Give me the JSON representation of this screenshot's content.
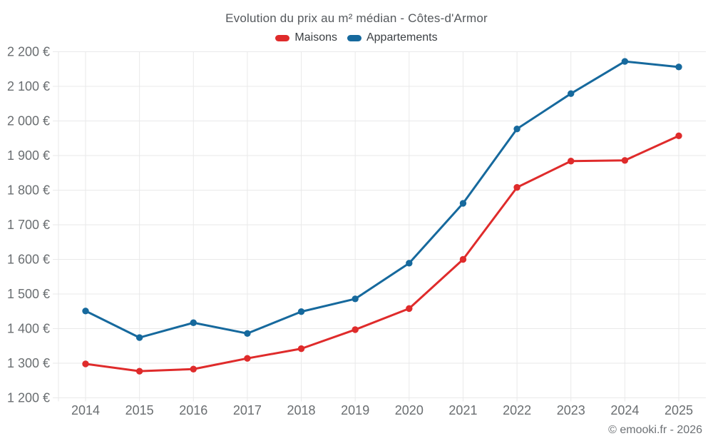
{
  "chart_data": {
    "type": "line",
    "title": "Evolution du prix au m² médian - Côtes-d'Armor",
    "x": [
      "2014",
      "2015",
      "2016",
      "2017",
      "2018",
      "2019",
      "2020",
      "2021",
      "2022",
      "2023",
      "2024",
      "2025"
    ],
    "series": [
      {
        "name": "Maisons",
        "color": "#df2b2b",
        "values": [
          1298,
          1277,
          1283,
          1314,
          1342,
          1397,
          1458,
          1600,
          1808,
          1884,
          1886,
          1957
        ]
      },
      {
        "name": "Appartements",
        "color": "#16699d",
        "values": [
          1451,
          1374,
          1417,
          1386,
          1449,
          1486,
          1589,
          1762,
          1977,
          2079,
          2172,
          2156
        ]
      }
    ],
    "ylim": [
      1200,
      2200
    ],
    "y_ticks": [
      {
        "value": 1200,
        "label": "1 200 €"
      },
      {
        "value": 1300,
        "label": "1 300 €"
      },
      {
        "value": 1400,
        "label": "1 400 €"
      },
      {
        "value": 1500,
        "label": "1 500 €"
      },
      {
        "value": 1600,
        "label": "1 600 €"
      },
      {
        "value": 1700,
        "label": "1 700 €"
      },
      {
        "value": 1800,
        "label": "1 800 €"
      },
      {
        "value": 1900,
        "label": "1 900 €"
      },
      {
        "value": 2000,
        "label": "2 000 €"
      },
      {
        "value": 2100,
        "label": "2 100 €"
      },
      {
        "value": 2200,
        "label": "2 200 €"
      }
    ],
    "grid": true,
    "legend_position": "top",
    "marker": "circle"
  },
  "footer": {
    "credit": "© emooki.fr - 2026"
  },
  "colors": {
    "grid": "#e9e9ea",
    "axis_label": "#6a6e71",
    "title": "#54585c",
    "legend_label": "#3b3f43",
    "credit": "#6d7175",
    "background": "#ffffff"
  }
}
